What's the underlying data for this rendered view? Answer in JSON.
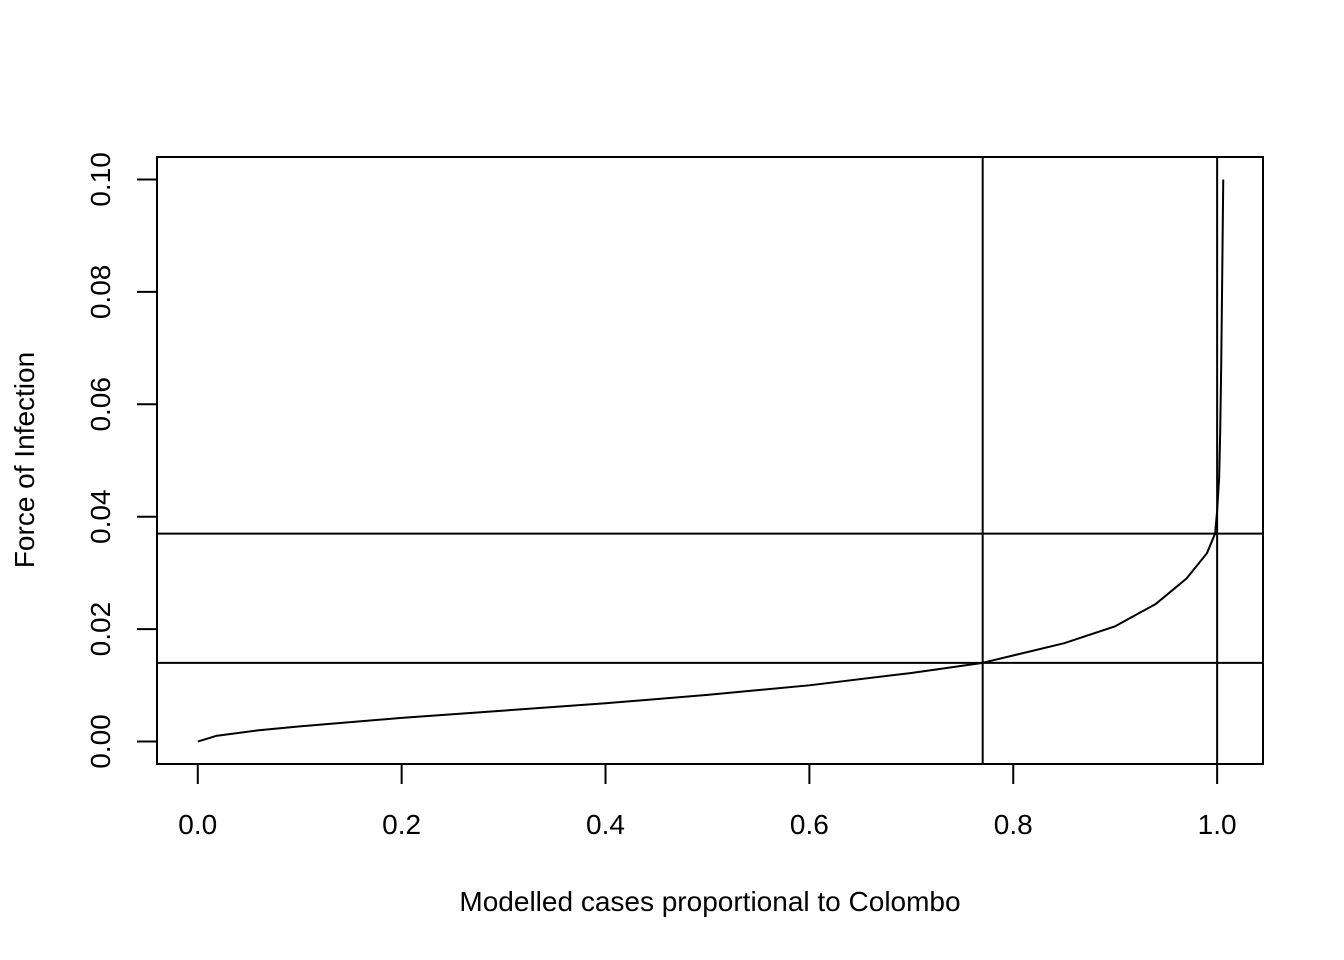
{
  "chart_data": {
    "type": "line",
    "title": "",
    "xlabel": "Modelled cases proportional to Colombo",
    "ylabel": "Force of Infection",
    "xlim": [
      -0.04,
      1.045
    ],
    "ylim": [
      -0.004,
      0.104
    ],
    "x_ticks": [
      0.0,
      0.2,
      0.4,
      0.6,
      0.8,
      1.0
    ],
    "x_tick_labels": [
      "0.0",
      "0.2",
      "0.4",
      "0.6",
      "0.8",
      "1.0"
    ],
    "y_ticks": [
      0.0,
      0.02,
      0.04,
      0.06,
      0.08,
      0.1
    ],
    "y_tick_labels": [
      "0.00",
      "0.02",
      "0.04",
      "0.06",
      "0.08",
      "0.10"
    ],
    "grid": false,
    "series": [
      {
        "x": [
          0.0,
          0.018,
          0.06,
          0.1,
          0.2,
          0.3,
          0.4,
          0.5,
          0.6,
          0.7,
          0.77,
          0.85,
          0.9,
          0.94,
          0.97,
          0.99,
          0.998,
          1.0,
          1.002,
          1.003,
          1.004,
          1.005,
          1.006
        ],
        "y": [
          0.0,
          0.001,
          0.002,
          0.0027,
          0.0042,
          0.0055,
          0.0068,
          0.0083,
          0.01,
          0.0122,
          0.014,
          0.0175,
          0.0205,
          0.0245,
          0.029,
          0.0335,
          0.037,
          0.041,
          0.047,
          0.055,
          0.067,
          0.083,
          0.1
        ]
      }
    ],
    "reference_lines": {
      "vertical_x": [
        0.77,
        1.0
      ],
      "horizontal_y": [
        0.014,
        0.037
      ]
    }
  }
}
